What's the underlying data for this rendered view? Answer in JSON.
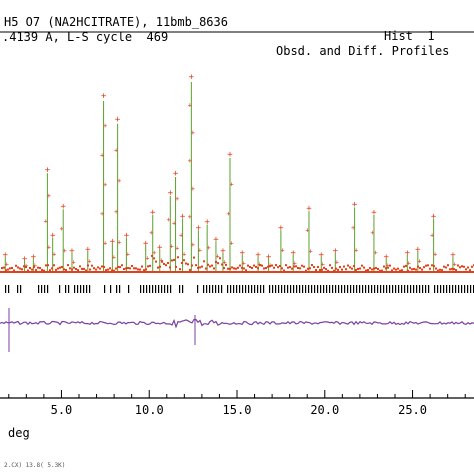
{
  "header": {
    "line1_left": "H5 O7 (NA2HCITRATE), 11bmb_8636",
    "line1_right": "Hist  1",
    "line2_left": ".4139 A, L-S cycle  469",
    "line2_right": "Obsd. and Diff. Profiles"
  },
  "footer": {
    "text": "2.CX) 13.8( 5.3K)"
  },
  "colors": {
    "observed": "#e0401a",
    "calculated": "#5aa02c",
    "difference": "#7a3fa0",
    "reflection_ticks": "#000000",
    "axis": "#000000"
  },
  "chart_data": {
    "type": "line",
    "xlabel": "deg",
    "ylabel": "",
    "xlim": [
      1.5,
      28.5
    ],
    "x_ticks": [
      5.0,
      10.0,
      15.0,
      20.0,
      25.0
    ],
    "x_tick_labels": [
      "5.0",
      "10.0",
      "15.0",
      "20.0",
      "25.0"
    ],
    "baseline": 3,
    "peaks": [
      {
        "x": 1.8,
        "h": 8
      },
      {
        "x": 2.9,
        "h": 6
      },
      {
        "x": 3.4,
        "h": 7
      },
      {
        "x": 4.2,
        "h": 52
      },
      {
        "x": 4.5,
        "h": 18
      },
      {
        "x": 5.1,
        "h": 33
      },
      {
        "x": 5.6,
        "h": 10
      },
      {
        "x": 6.5,
        "h": 11
      },
      {
        "x": 7.4,
        "h": 90
      },
      {
        "x": 7.9,
        "h": 15
      },
      {
        "x": 8.2,
        "h": 78
      },
      {
        "x": 8.7,
        "h": 18
      },
      {
        "x": 9.8,
        "h": 14
      },
      {
        "x": 10.2,
        "h": 30
      },
      {
        "x": 10.6,
        "h": 12
      },
      {
        "x": 11.2,
        "h": 40
      },
      {
        "x": 11.5,
        "h": 50
      },
      {
        "x": 11.9,
        "h": 28
      },
      {
        "x": 12.4,
        "h": 100
      },
      {
        "x": 12.8,
        "h": 22
      },
      {
        "x": 13.3,
        "h": 25
      },
      {
        "x": 13.8,
        "h": 16
      },
      {
        "x": 14.2,
        "h": 10
      },
      {
        "x": 14.6,
        "h": 60
      },
      {
        "x": 15.3,
        "h": 9
      },
      {
        "x": 16.2,
        "h": 8
      },
      {
        "x": 16.8,
        "h": 7
      },
      {
        "x": 17.5,
        "h": 22
      },
      {
        "x": 18.2,
        "h": 9
      },
      {
        "x": 19.1,
        "h": 32
      },
      {
        "x": 19.8,
        "h": 8
      },
      {
        "x": 20.6,
        "h": 10
      },
      {
        "x": 21.7,
        "h": 34
      },
      {
        "x": 22.8,
        "h": 30
      },
      {
        "x": 23.5,
        "h": 7
      },
      {
        "x": 24.7,
        "h": 9
      },
      {
        "x": 25.3,
        "h": 11
      },
      {
        "x": 26.2,
        "h": 28
      },
      {
        "x": 27.3,
        "h": 8
      }
    ]
  }
}
